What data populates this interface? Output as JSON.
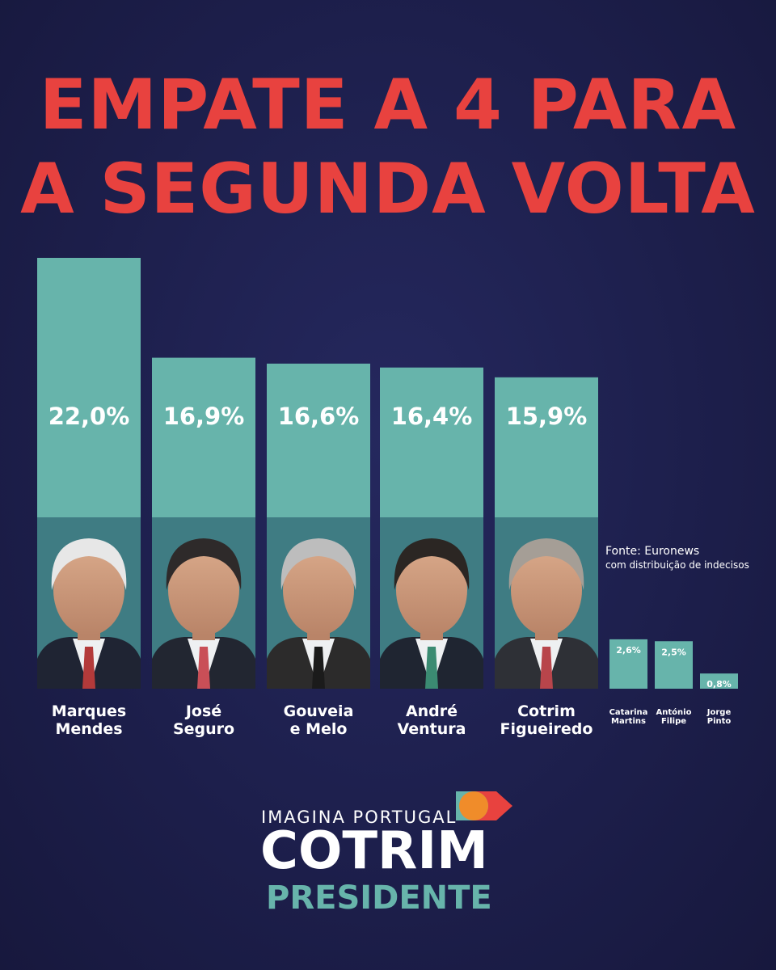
{
  "headline": {
    "line1": "EMPATE A 4 PARA",
    "line2": "A SEGUNDA VOLTA"
  },
  "colors": {
    "headline": "#e8423f",
    "bar": "#67b4ab",
    "background": "#1d1f4c",
    "text": "#ffffff"
  },
  "chart_data": {
    "type": "bar",
    "categories": [
      [
        "Marques",
        "Mendes"
      ],
      [
        "José",
        "Seguro"
      ],
      [
        "Gouveia",
        "e Melo"
      ],
      [
        "André",
        "Ventura"
      ],
      [
        "Cotrim",
        "Figueiredo"
      ],
      [
        "Catarina",
        "Martins"
      ],
      [
        "António",
        "Filipe"
      ],
      [
        "Jorge",
        "Pinto"
      ]
    ],
    "values": [
      22.0,
      16.9,
      16.6,
      16.4,
      15.9,
      2.6,
      2.5,
      0.8
    ],
    "value_labels": [
      "22,0%",
      "16,9%",
      "16,6%",
      "16,4%",
      "15,9%",
      "2,6%",
      "2,5%",
      "0,8%"
    ],
    "grid": false,
    "legend": "none"
  },
  "source": {
    "line1": "Fonte: Euronews",
    "line2": "com distribuição de indecisos"
  },
  "brand": {
    "tagline": "IMAGINA PORTUGAL",
    "name": "COTRIM",
    "subtitle": "PRESIDENTE"
  }
}
